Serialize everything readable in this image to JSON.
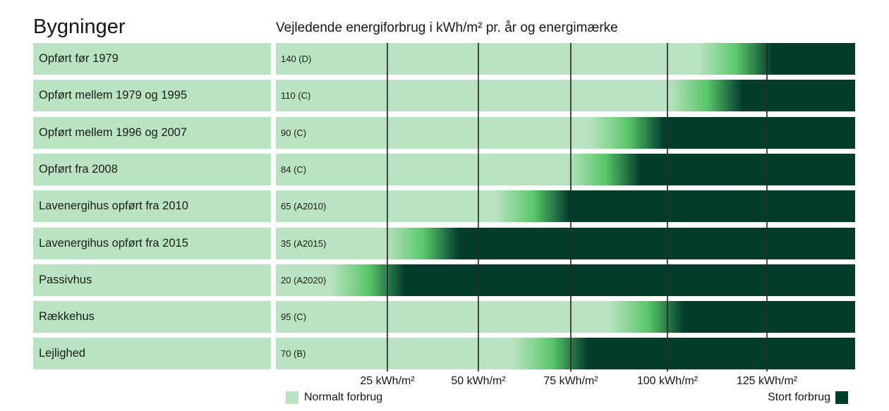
{
  "header": {
    "title": "Bygninger",
    "subtitle": "Vejledende energiforbrug i kWh/m² pr. år og energimærke"
  },
  "colors": {
    "normal": "#b9e3c1",
    "mid": "#5ac76a",
    "high": "#023d2c"
  },
  "chart_data": {
    "type": "bar",
    "title": "Vejledende energiforbrug i kWh/m² pr. år og energimærke",
    "xlabel": "",
    "ylabel": "Bygninger",
    "categories": [
      "Opført før 1979",
      "Opført mellem 1979 og 1995",
      "Opført mellem 1996 og 2007",
      "Opført fra 2008",
      "Lavenergihus opført fra 2010",
      "Lavenergihus opført fra 2015",
      "Passivhus",
      "Rækkehus",
      "Lejlighed"
    ],
    "values": [
      140,
      110,
      90,
      84,
      65,
      35,
      20,
      95,
      70
    ],
    "value_labels": [
      "140 (D)",
      "110 (C)",
      "90 (C)",
      "84 (C)",
      "65 (A2010)",
      "35 (A2015)",
      "20 (A2020)",
      "95 (C)",
      "70 (B)"
    ],
    "ticks": [
      25,
      50,
      75,
      100,
      125
    ],
    "tick_labels": [
      "25 kWh/m²",
      "50 kWh/m²",
      "75 kWh/m²",
      "100 kWh/m²",
      "125 kWh/m²"
    ],
    "grid": true,
    "legend": [
      {
        "label": "Normalt forbrug",
        "color": "#b9e3c1",
        "position": "bottom-left"
      },
      {
        "label": "Stort forbrug",
        "color": "#023d2c",
        "position": "bottom-right"
      }
    ]
  }
}
